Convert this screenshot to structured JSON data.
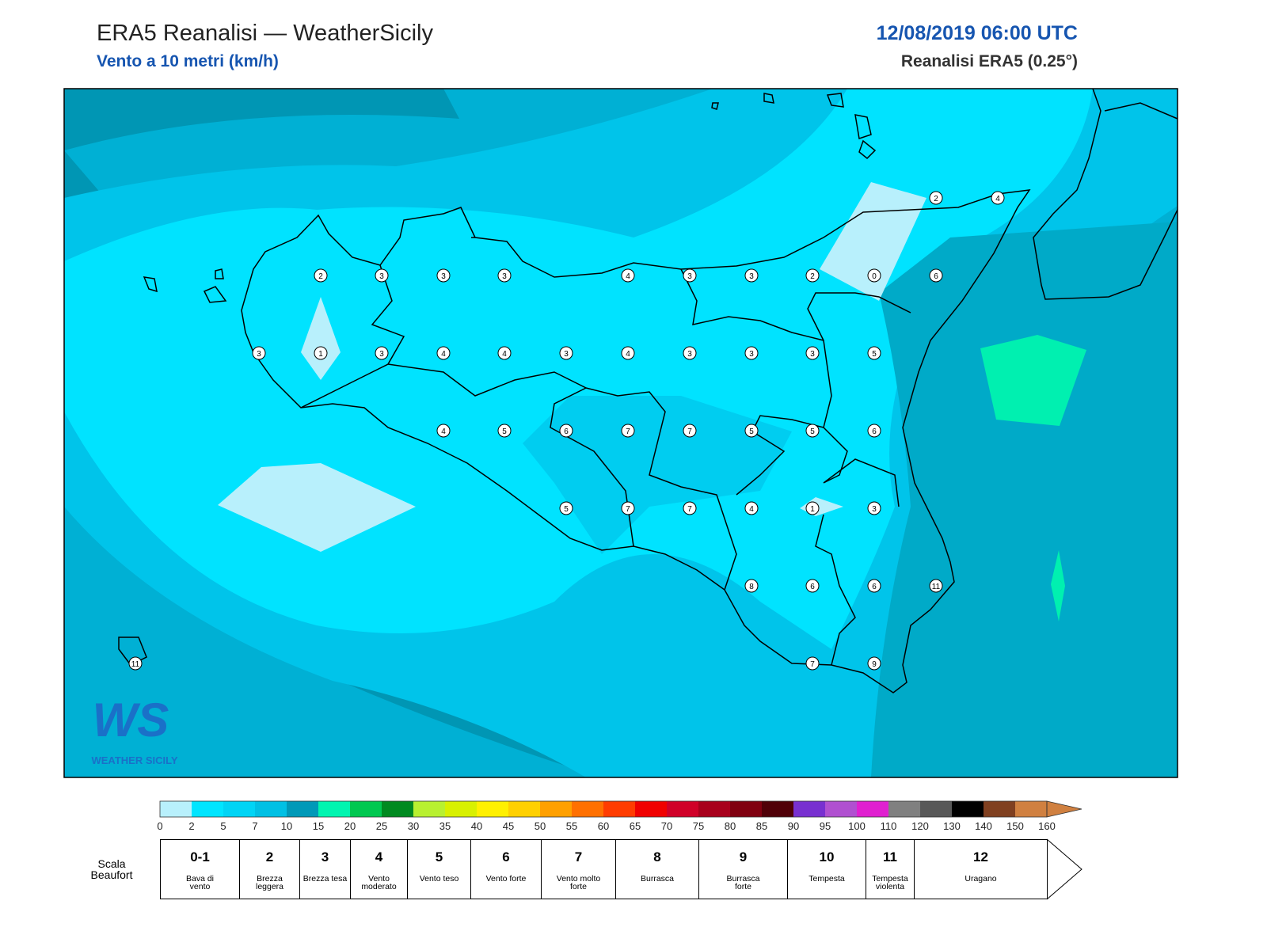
{
  "header": {
    "title": "ERA5 Reanalisi — WeatherSicily",
    "subtitle": "Vento a 10 metri (km/h)",
    "datetime": "12/08/2019 06:00 UTC",
    "source": "Reanalisi ERA5 (0.25°)"
  },
  "stations": [
    2,
    3,
    3,
    3,
    4,
    3,
    3,
    2,
    0,
    6,
    2,
    4,
    3,
    1,
    3,
    4,
    4,
    3,
    4,
    3,
    3,
    3,
    5,
    4,
    5,
    6,
    7,
    7,
    5,
    5,
    6,
    5,
    7,
    7,
    4,
    1,
    3,
    8,
    6,
    6,
    11,
    7,
    9,
    11
  ],
  "logo": {
    "mark": "WS",
    "text": "WEATHER SICILY"
  },
  "colorbar": {
    "ticks": [
      0,
      2,
      5,
      7,
      10,
      15,
      20,
      25,
      30,
      35,
      40,
      45,
      50,
      55,
      60,
      65,
      70,
      75,
      80,
      85,
      90,
      95,
      100,
      110,
      120,
      130,
      140,
      150,
      160
    ],
    "colors": [
      "#b8f0fc",
      "#00e5ff",
      "#00d4f5",
      "#00c0e4",
      "#0099b8",
      "#00f5b0",
      "#00c850",
      "#008a20",
      "#b8f030",
      "#d8f000",
      "#fff000",
      "#ffd000",
      "#ffa000",
      "#ff7000",
      "#ff3c00",
      "#f00000",
      "#d00028",
      "#a8001c",
      "#800010",
      "#500008",
      "#7830d0",
      "#b050d0",
      "#e020d0",
      "#808080",
      "#585858",
      "#000000",
      "#804020",
      "#d08040"
    ],
    "extend_color": "#d08040"
  },
  "beaufort": {
    "label": "Scala Beaufort",
    "levels": [
      {
        "number": "0-1",
        "description": "Bava di vento"
      },
      {
        "number": "2",
        "description": "Brezza leggera"
      },
      {
        "number": "3",
        "description": "Brezza tesa"
      },
      {
        "number": "4",
        "description": "Vento moderato"
      },
      {
        "number": "5",
        "description": "Vento teso"
      },
      {
        "number": "6",
        "description": "Vento forte"
      },
      {
        "number": "7",
        "description": "Vento molto forte"
      },
      {
        "number": "8",
        "description": "Burrasca"
      },
      {
        "number": "9",
        "description": "Burrasca forte"
      },
      {
        "number": "10",
        "description": "Tempesta"
      },
      {
        "number": "11",
        "description": "Tempesta violenta"
      },
      {
        "number": "12",
        "description": "Uragano"
      }
    ]
  }
}
